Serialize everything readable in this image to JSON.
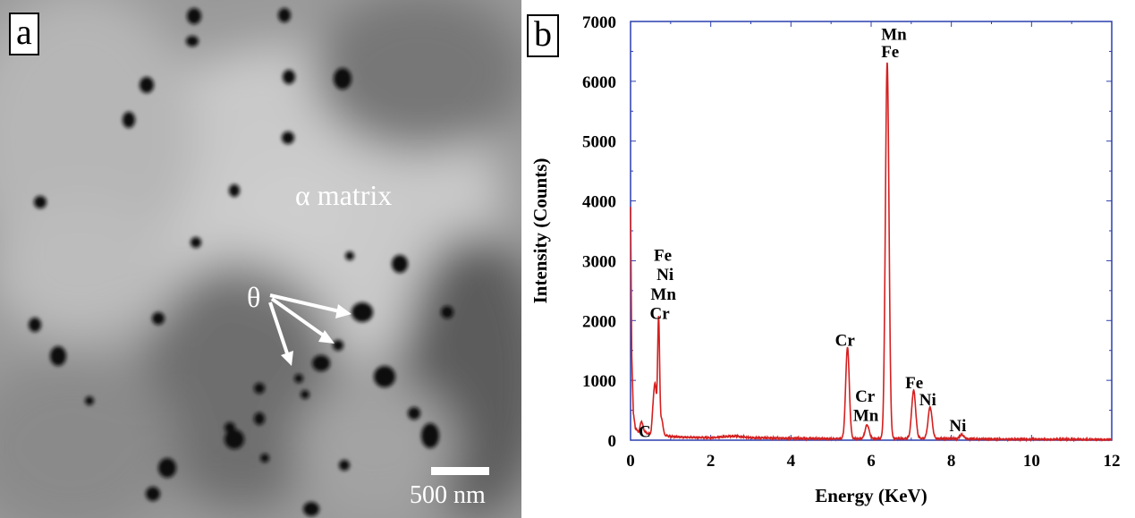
{
  "panel_a": {
    "letter": "a",
    "matrix_label": "α matrix",
    "precipitate_label": "θ",
    "scale_bar_label": "500 nm"
  },
  "panel_b": {
    "letter": "b"
  },
  "chart_data": {
    "type": "line",
    "title": "",
    "xlabel": "Energy (KeV)",
    "ylabel": "Intensity (Counts)",
    "xlim": [
      0,
      12
    ],
    "ylim": [
      0,
      7000
    ],
    "xticks": [
      0,
      2,
      4,
      6,
      8,
      10,
      12
    ],
    "yticks": [
      0,
      1000,
      2000,
      3000,
      4000,
      5000,
      6000,
      7000
    ],
    "grid": false,
    "line_color": "#d42020",
    "frame_color": "#2c3fae",
    "background": [
      [
        0.0,
        3900
      ],
      [
        0.03,
        1400
      ],
      [
        0.07,
        450
      ],
      [
        0.12,
        200
      ],
      [
        0.2,
        130
      ],
      [
        0.3,
        180
      ],
      [
        0.4,
        120
      ],
      [
        0.5,
        100
      ],
      [
        0.8,
        90
      ],
      [
        1.0,
        60
      ],
      [
        1.5,
        45
      ],
      [
        2.0,
        40
      ],
      [
        2.6,
        70
      ],
      [
        3.0,
        40
      ],
      [
        4.0,
        30
      ],
      [
        5.0,
        25
      ],
      [
        6.0,
        25
      ],
      [
        7.5,
        30
      ],
      [
        8.5,
        20
      ],
      [
        10.0,
        15
      ],
      [
        12.0,
        10
      ]
    ],
    "peaks": [
      {
        "x": 0.27,
        "height": 150,
        "width": 0.03
      },
      {
        "x": 0.57,
        "height": 450,
        "width": 0.03
      },
      {
        "x": 0.62,
        "height": 700,
        "width": 0.03
      },
      {
        "x": 0.7,
        "height": 1950,
        "width": 0.025
      },
      {
        "x": 0.78,
        "height": 250,
        "width": 0.03
      },
      {
        "x": 5.41,
        "height": 1530,
        "width": 0.045
      },
      {
        "x": 5.9,
        "height": 230,
        "width": 0.05
      },
      {
        "x": 6.4,
        "height": 6280,
        "width": 0.045
      },
      {
        "x": 7.06,
        "height": 800,
        "width": 0.05
      },
      {
        "x": 7.47,
        "height": 520,
        "width": 0.05
      },
      {
        "x": 8.26,
        "height": 70,
        "width": 0.05
      }
    ],
    "annotations": [
      {
        "text": "C",
        "x": 0.2,
        "y": 50
      },
      {
        "text": "Fe",
        "x": 0.58,
        "y": 3000
      },
      {
        "text": "Ni",
        "x": 0.65,
        "y": 2680
      },
      {
        "text": "Mn",
        "x": 0.5,
        "y": 2350
      },
      {
        "text": "Cr",
        "x": 0.48,
        "y": 2030
      },
      {
        "text": "Cr",
        "x": 5.1,
        "y": 1580
      },
      {
        "text": "Cr",
        "x": 5.6,
        "y": 640
      },
      {
        "text": "Mn",
        "x": 5.55,
        "y": 320
      },
      {
        "text": "Mn",
        "x": 6.25,
        "y": 6690
      },
      {
        "text": "Fe",
        "x": 6.25,
        "y": 6400
      },
      {
        "text": "Fe",
        "x": 6.85,
        "y": 870
      },
      {
        "text": "Ni",
        "x": 7.2,
        "y": 580
      },
      {
        "text": "Ni",
        "x": 7.95,
        "y": 150
      }
    ]
  }
}
